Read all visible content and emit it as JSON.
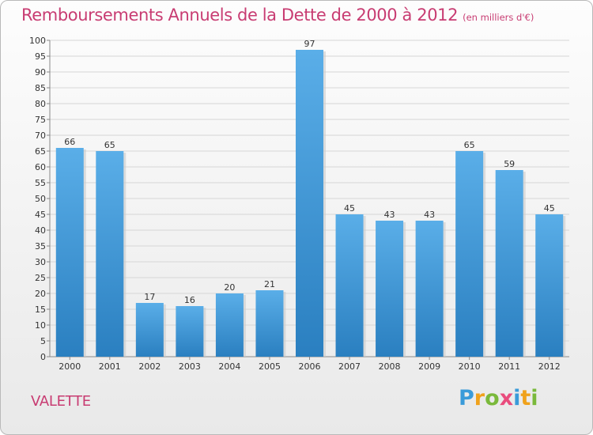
{
  "header": {
    "title": "Remboursements Annuels de la Dette de 2000 à 2012",
    "unit": "(en milliers d'€)"
  },
  "footer": {
    "commune": "VALETTE",
    "logo_letters": [
      "P",
      "r",
      "o",
      "x",
      "i",
      "t",
      "i"
    ]
  },
  "colors": {
    "title": "#c83c72",
    "bar_top": "#5aaee8",
    "bar_bottom": "#2a7fc0"
  },
  "chart_data": {
    "type": "bar",
    "title": "Remboursements Annuels de la Dette de 2000 à 2012",
    "subtitle": "(en milliers d'€)",
    "categories": [
      "2000",
      "2001",
      "2002",
      "2003",
      "2004",
      "2005",
      "2006",
      "2007",
      "2008",
      "2009",
      "2010",
      "2011",
      "2012"
    ],
    "values": [
      66,
      65,
      17,
      16,
      20,
      21,
      97,
      45,
      43,
      43,
      65,
      59,
      45
    ],
    "ylim": [
      0,
      100
    ],
    "ytick_step": 5,
    "yticks": [
      "0",
      "5",
      "10",
      "15",
      "20",
      "25",
      "30",
      "35",
      "40",
      "45",
      "50",
      "55",
      "60",
      "65",
      "70",
      "75",
      "80",
      "85",
      "90",
      "95",
      "100"
    ],
    "xlabel": "",
    "ylabel": "",
    "grid": true,
    "legend": "none"
  }
}
